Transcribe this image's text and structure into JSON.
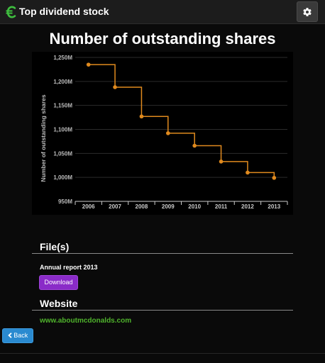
{
  "header": {
    "title": "Top dividend stock",
    "logo_icon": "euro-icon",
    "settings_icon": "gear-icon"
  },
  "page": {
    "title": "Number of outstanding shares"
  },
  "chart_data": {
    "type": "line",
    "step": true,
    "title": "",
    "xlabel": "",
    "ylabel": "Number of outstanding shares",
    "categories": [
      "2006",
      "2007",
      "2008",
      "2009",
      "2010",
      "2011",
      "2012",
      "2013"
    ],
    "values": [
      1235,
      1188,
      1127,
      1092,
      1066,
      1033,
      1010,
      999
    ],
    "value_unit_suffix": "M",
    "ylim": [
      950,
      1250
    ],
    "y_ticks": [
      "950M",
      "1,000M",
      "1,050M",
      "1,100M",
      "1,150M",
      "1,200M",
      "1,250M"
    ],
    "grid": true,
    "legend": "none",
    "line_color": "#e08a1e"
  },
  "files": {
    "heading": "File(s)",
    "items": [
      {
        "label": "Annual report 2013",
        "button_label": "Download"
      }
    ]
  },
  "website": {
    "heading": "Website",
    "link": "www.aboutmcdonalds.com"
  },
  "nav": {
    "back_label": "Back",
    "back_icon": "chevron-left-icon"
  },
  "colors": {
    "download_button": "#8a2bc8",
    "back_button": "#2a8ad0",
    "link": "#4fb32c",
    "logo": "#3fbf3f"
  }
}
